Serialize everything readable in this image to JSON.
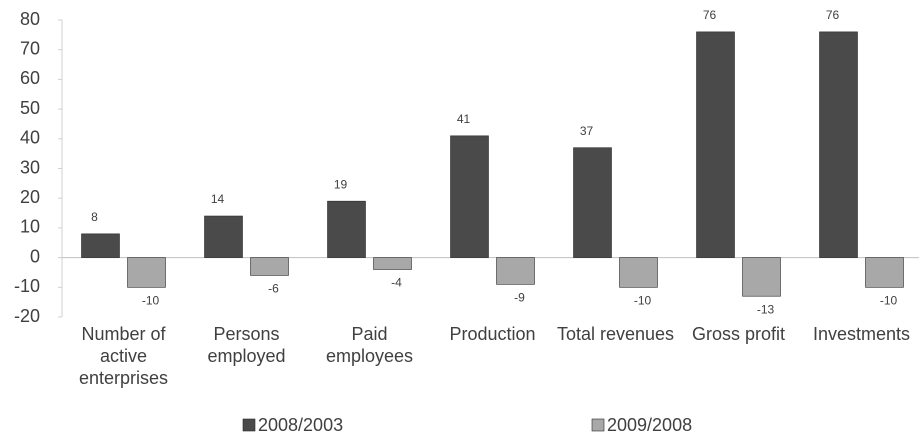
{
  "chart_data": {
    "type": "bar",
    "categories": [
      "Number of active enterprises",
      "Persons employed",
      "Paid employees",
      "Production",
      "Total revenues",
      "Gross profit",
      "Investments"
    ],
    "series": [
      {
        "name": "2008/2003",
        "color": "#4a4a4a",
        "values": [
          8,
          14,
          19,
          41,
          37,
          76,
          76
        ]
      },
      {
        "name": "2009/2008",
        "color": "#a8a8a8",
        "values": [
          -10,
          -6,
          -4,
          -9,
          -10,
          -13,
          -10
        ]
      }
    ],
    "ylim": [
      -20,
      80
    ],
    "yticks": [
      -20,
      -10,
      0,
      10,
      20,
      30,
      40,
      50,
      60,
      70,
      80
    ],
    "grid": false,
    "legend": "bottom"
  }
}
